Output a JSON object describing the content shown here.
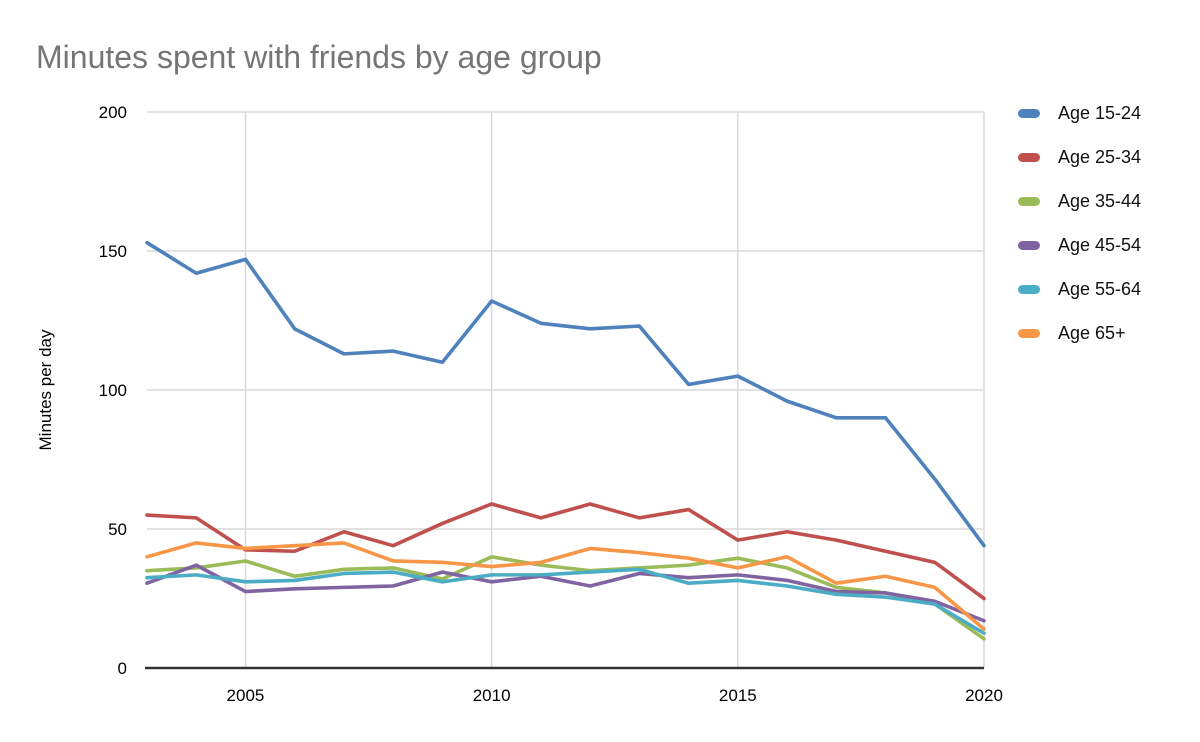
{
  "chart_data": {
    "type": "line",
    "title": "Minutes spent with friends by age group",
    "xlabel": "",
    "ylabel": "Minutes per day",
    "x": [
      2003,
      2004,
      2005,
      2006,
      2007,
      2008,
      2009,
      2010,
      2011,
      2012,
      2013,
      2014,
      2015,
      2016,
      2017,
      2018,
      2019,
      2020
    ],
    "series": [
      {
        "name": "Age 15-24",
        "color": "#4F81BD",
        "values": [
          153,
          142,
          147,
          122,
          113,
          114,
          110,
          132,
          124,
          122,
          123,
          102,
          105,
          96,
          90,
          90,
          68,
          44
        ]
      },
      {
        "name": "Age 25-34",
        "color": "#C0504D",
        "values": [
          55,
          54,
          42.5,
          42,
          49,
          44,
          52,
          59,
          54,
          59,
          54,
          57,
          46,
          49,
          46,
          42,
          38,
          25
        ]
      },
      {
        "name": "Age 35-44",
        "color": "#9BBB59",
        "values": [
          35,
          36,
          38.5,
          33,
          35.5,
          36,
          32,
          40,
          37,
          35,
          36,
          37,
          39.5,
          36,
          29,
          27,
          23,
          10.5
        ]
      },
      {
        "name": "Age 45-54",
        "color": "#8064A2",
        "values": [
          30.5,
          37,
          27.5,
          28.5,
          29,
          29.5,
          34.5,
          31,
          33,
          29.5,
          34,
          32.5,
          33.5,
          31.5,
          27.5,
          27,
          24,
          17
        ]
      },
      {
        "name": "Age 55-64",
        "color": "#4BACC6",
        "values": [
          32.5,
          33.5,
          31,
          31.5,
          34,
          34.5,
          31,
          33.5,
          33.5,
          34.5,
          35.5,
          30.5,
          31.5,
          29.5,
          26.5,
          25.5,
          23,
          12.5
        ]
      },
      {
        "name": "Age 65+",
        "color": "#F79646",
        "values": [
          40,
          45,
          43,
          44,
          45,
          38.5,
          38,
          36.5,
          38,
          43,
          41.5,
          39.5,
          36,
          40,
          30.5,
          33,
          29,
          14
        ]
      }
    ],
    "ylim": [
      0,
      200
    ],
    "y_ticks": [
      0,
      50,
      100,
      150,
      200
    ],
    "x_ticks": [
      2005,
      2010,
      2015,
      2020
    ],
    "grid": true,
    "grid_color": "#d9d9d9",
    "axis_color": "#333333",
    "legend_position": "right"
  }
}
